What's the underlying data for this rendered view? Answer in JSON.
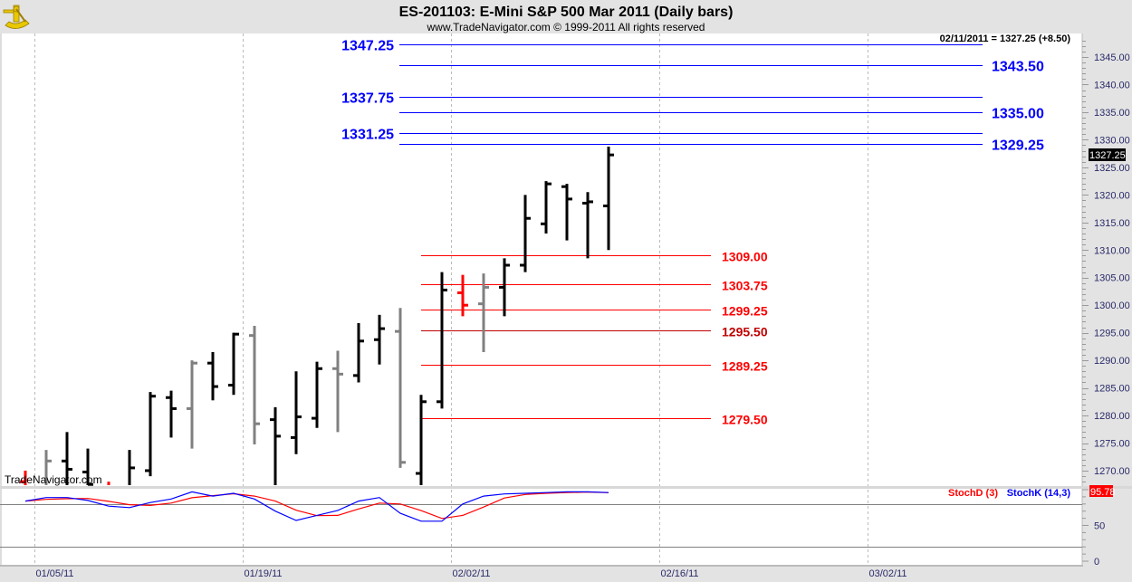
{
  "header": {
    "title": "ES-201103:  E-Mini S&P 500 Mar 2011  (Daily bars)",
    "subtitle": "www.TradeNavigator.com © 1999-2011 All rights reserved",
    "info": "02/11/2011 = 1327.25 (+8.50)",
    "logo_icon": "sextant-icon"
  },
  "watermark": "TradeNavigator.com",
  "chart_data": [
    {
      "type": "ohlc",
      "title": "ES-201103:  E-Mini S&P 500 Mar 2011  (Daily bars)",
      "ylim": [
        1267,
        1349
      ],
      "grid": "vertical dashed",
      "y_ticks": [
        "1345.00",
        "1340.00",
        "1335.00",
        "1330.00",
        "1325.00",
        "1320.00",
        "1315.00",
        "1310.00",
        "1305.00",
        "1300.00",
        "1295.00",
        "1290.00",
        "1285.00",
        "1280.00",
        "1275.00",
        "1270.00"
      ],
      "x_ticks": [
        "01/05/11",
        "01/19/11",
        "02/02/11",
        "02/16/11",
        "03/02/11"
      ],
      "last_price_label": "1327.25",
      "colors": {
        "up": "#000000",
        "down_gray": "#808080",
        "red": "#ff0000"
      },
      "bars": [
        {
          "date": "01/04/11",
          "open": 1268.0,
          "high": 1270.0,
          "low": 1265.0,
          "close": 1267.0,
          "color": "red"
        },
        {
          "date": "01/05/11",
          "open": 1267.0,
          "high": 1273.75,
          "low": 1265.0,
          "close": 1271.75,
          "color": "gray"
        },
        {
          "date": "01/06/11",
          "open": 1271.75,
          "high": 1277.0,
          "low": 1265.0,
          "close": 1270.25,
          "color": "black"
        },
        {
          "date": "01/07/11",
          "open": 1269.75,
          "high": 1274.0,
          "low": 1265.0,
          "close": 1267.5,
          "color": "black"
        },
        {
          "date": "01/10/11",
          "open": 1267.0,
          "high": 1268.0,
          "low": 1265.0,
          "close": 1266.5,
          "color": "red"
        },
        {
          "date": "01/11/11",
          "open": 1266.0,
          "high": 1273.75,
          "low": 1265.0,
          "close": 1270.5,
          "color": "black"
        },
        {
          "date": "01/12/11",
          "open": 1270.0,
          "high": 1284.25,
          "low": 1269.0,
          "close": 1283.5,
          "color": "black"
        },
        {
          "date": "01/13/11",
          "open": 1283.25,
          "high": 1284.5,
          "low": 1276.0,
          "close": 1281.25,
          "color": "black"
        },
        {
          "date": "01/14/11",
          "open": 1281.25,
          "high": 1290.0,
          "low": 1274.0,
          "close": 1289.5,
          "color": "gray"
        },
        {
          "date": "01/17/11",
          "open": 1289.5,
          "high": 1291.5,
          "low": 1282.75,
          "close": 1285.25,
          "color": "black"
        },
        {
          "date": "01/18/11",
          "open": 1285.5,
          "high": 1295.0,
          "low": 1283.75,
          "close": 1294.75,
          "color": "black"
        },
        {
          "date": "01/19/11",
          "open": 1294.5,
          "high": 1296.25,
          "low": 1274.75,
          "close": 1278.5,
          "color": "gray"
        },
        {
          "date": "01/20/11",
          "open": 1279.25,
          "high": 1281.5,
          "low": 1265.0,
          "close": 1276.25,
          "color": "black"
        },
        {
          "date": "01/21/11",
          "open": 1276.0,
          "high": 1288.0,
          "low": 1273.0,
          "close": 1279.75,
          "color": "black"
        },
        {
          "date": "01/24/11",
          "open": 1279.5,
          "high": 1289.75,
          "low": 1277.75,
          "close": 1288.5,
          "color": "black"
        },
        {
          "date": "01/25/11",
          "open": 1288.5,
          "high": 1291.75,
          "low": 1277.0,
          "close": 1287.5,
          "color": "gray"
        },
        {
          "date": "01/26/11",
          "open": 1287.25,
          "high": 1296.75,
          "low": 1286.0,
          "close": 1293.5,
          "color": "black"
        },
        {
          "date": "01/27/11",
          "open": 1293.75,
          "high": 1298.25,
          "low": 1289.25,
          "close": 1295.75,
          "color": "black"
        },
        {
          "date": "01/28/11",
          "open": 1295.25,
          "high": 1299.5,
          "low": 1270.5,
          "close": 1271.5,
          "color": "gray"
        },
        {
          "date": "01/31/11",
          "open": 1269.5,
          "high": 1283.75,
          "low": 1265.0,
          "close": 1282.5,
          "color": "black"
        },
        {
          "date": "02/01/11",
          "open": 1282.5,
          "high": 1306.0,
          "low": 1281.25,
          "close": 1302.75,
          "color": "black"
        },
        {
          "date": "02/02/11",
          "open": 1302.25,
          "high": 1305.5,
          "low": 1298.0,
          "close": 1300.0,
          "color": "red"
        },
        {
          "date": "02/03/11",
          "open": 1300.25,
          "high": 1305.75,
          "low": 1291.5,
          "close": 1303.25,
          "color": "gray"
        },
        {
          "date": "02/04/11",
          "open": 1303.25,
          "high": 1308.5,
          "low": 1298.0,
          "close": 1307.25,
          "color": "black"
        },
        {
          "date": "02/07/11",
          "open": 1307.25,
          "high": 1320.0,
          "low": 1306.0,
          "close": 1315.75,
          "color": "black"
        },
        {
          "date": "02/08/11",
          "open": 1314.75,
          "high": 1322.5,
          "low": 1313.0,
          "close": 1322.0,
          "color": "black"
        },
        {
          "date": "02/09/11",
          "open": 1321.5,
          "high": 1322.0,
          "low": 1311.75,
          "close": 1319.25,
          "color": "black"
        },
        {
          "date": "02/10/11",
          "open": 1318.5,
          "high": 1320.5,
          "low": 1308.5,
          "close": 1318.75,
          "color": "black"
        },
        {
          "date": "02/11/11",
          "open": 1318.0,
          "high": 1328.75,
          "low": 1310.0,
          "close": 1327.25,
          "color": "black"
        }
      ],
      "levels": [
        {
          "label": "1347.25",
          "price": 1347.25,
          "side": "left",
          "color": "#0000ff",
          "group": "resistance"
        },
        {
          "label": "1343.50",
          "price": 1343.5,
          "side": "right",
          "color": "#0000ff",
          "group": "resistance"
        },
        {
          "label": "1337.75",
          "price": 1337.75,
          "side": "left",
          "color": "#0000ff",
          "group": "resistance"
        },
        {
          "label": "1335.00",
          "price": 1335.0,
          "side": "right",
          "color": "#0000ff",
          "group": "resistance"
        },
        {
          "label": "1331.25",
          "price": 1331.25,
          "side": "left",
          "color": "#0000ff",
          "group": "resistance"
        },
        {
          "label": "1329.25",
          "price": 1329.25,
          "side": "right",
          "color": "#0000ff",
          "group": "resistance"
        },
        {
          "label": "1309.00",
          "price": 1309.0,
          "side": "right",
          "color": "#ff0000",
          "group": "support"
        },
        {
          "label": "1303.75",
          "price": 1303.75,
          "side": "right",
          "color": "#ff0000",
          "group": "support"
        },
        {
          "label": "1299.25",
          "price": 1299.25,
          "side": "right",
          "color": "#ff0000",
          "group": "support"
        },
        {
          "label": "1295.50",
          "price": 1295.5,
          "side": "right",
          "color": "#c00000",
          "group": "support"
        },
        {
          "label": "1289.25",
          "price": 1289.25,
          "side": "right",
          "color": "#ff0000",
          "group": "support"
        },
        {
          "label": "1279.50",
          "price": 1279.5,
          "side": "right",
          "color": "#ff0000",
          "group": "support"
        }
      ]
    },
    {
      "type": "line",
      "ylim": [
        0,
        100
      ],
      "y_ticks": [
        "50",
        "0"
      ],
      "reference_lines": [
        20,
        80
      ],
      "last_value_label": "95.78",
      "series": [
        {
          "name": "StochK (14,3)",
          "color": "#0000ff",
          "values": [
            84,
            89,
            89,
            85,
            77,
            75,
            82,
            87,
            97,
            91,
            95,
            87,
            70,
            57,
            64,
            71,
            84,
            89,
            67,
            56,
            56,
            80,
            91,
            94,
            95,
            96,
            97,
            97,
            96
          ]
        },
        {
          "name": "StochD (3)",
          "color": "#ff0000",
          "values": [
            84,
            86.5,
            87.3,
            87.7,
            83.7,
            79,
            78,
            81.3,
            88.7,
            91.7,
            94.3,
            91,
            84,
            71.3,
            63.7,
            64,
            73,
            81.3,
            80,
            70.7,
            59.7,
            64,
            75.7,
            88.3,
            93.3,
            95,
            96,
            96.7,
            95.78
          ]
        }
      ]
    }
  ]
}
